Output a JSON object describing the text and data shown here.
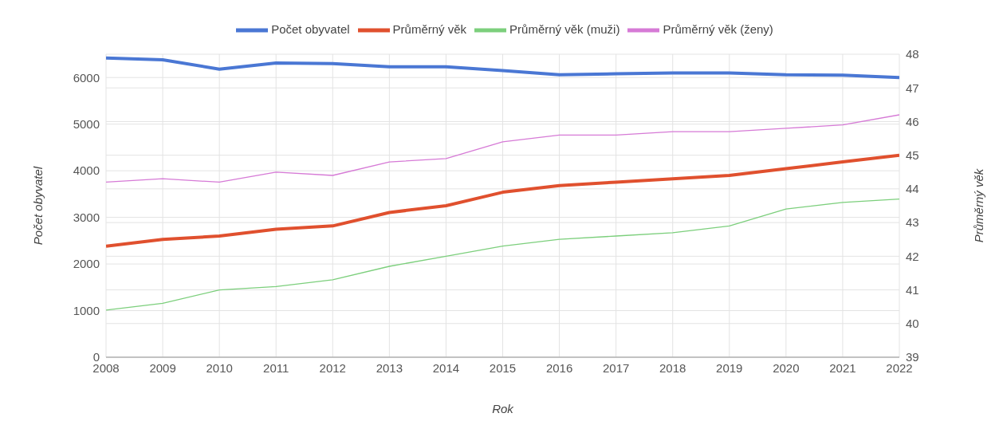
{
  "chart_data": {
    "type": "line",
    "xlabel": "Rok",
    "ylabel": "Počet obyvatel",
    "y2label": "Průměrný věk",
    "x": [
      2008,
      2009,
      2010,
      2011,
      2012,
      2013,
      2014,
      2015,
      2016,
      2017,
      2018,
      2019,
      2020,
      2021,
      2022
    ],
    "xlim": [
      2008,
      2022
    ],
    "xticks": [
      2008,
      2009,
      2010,
      2011,
      2012,
      2013,
      2014,
      2015,
      2016,
      2017,
      2018,
      2019,
      2020,
      2021,
      2022
    ],
    "ylim": [
      0,
      6500
    ],
    "yticks": [
      0,
      1000,
      2000,
      3000,
      4000,
      5000,
      6000
    ],
    "y2lim": [
      39,
      48
    ],
    "y2ticks": [
      39,
      40,
      41,
      42,
      43,
      44,
      45,
      46,
      47,
      48
    ],
    "grid": true,
    "legend": "top",
    "marker": "none",
    "series": [
      {
        "name": "Počet obyvatel",
        "color": "#4a77d4",
        "values": [
          6420,
          6380,
          6180,
          6310,
          6300,
          6230,
          6230,
          6150,
          6060,
          6080,
          6100,
          6100,
          6060,
          6050,
          6000
        ]
      },
      {
        "name": "Průměrný věk",
        "color": "#e0502e",
        "axis": "y2",
        "values": [
          42.3,
          42.5,
          42.6,
          42.8,
          42.9,
          43.3,
          43.5,
          43.9,
          44.1,
          44.2,
          44.3,
          44.4,
          44.6,
          44.8,
          45.0
        ]
      },
      {
        "name": "Průměrný věk (muži)",
        "color": "#7ccf7c",
        "axis": "y2",
        "values": [
          40.4,
          40.6,
          41.0,
          41.1,
          41.3,
          41.7,
          42.0,
          42.3,
          42.5,
          42.6,
          42.7,
          42.9,
          43.4,
          43.6,
          43.7
        ]
      },
      {
        "name": "Průměrný věk (ženy)",
        "color": "#d67ad6",
        "axis": "y2",
        "values": [
          44.2,
          44.3,
          44.2,
          44.5,
          44.4,
          44.8,
          44.9,
          45.4,
          45.6,
          45.6,
          45.7,
          45.7,
          45.8,
          45.9,
          46.2
        ]
      }
    ]
  }
}
